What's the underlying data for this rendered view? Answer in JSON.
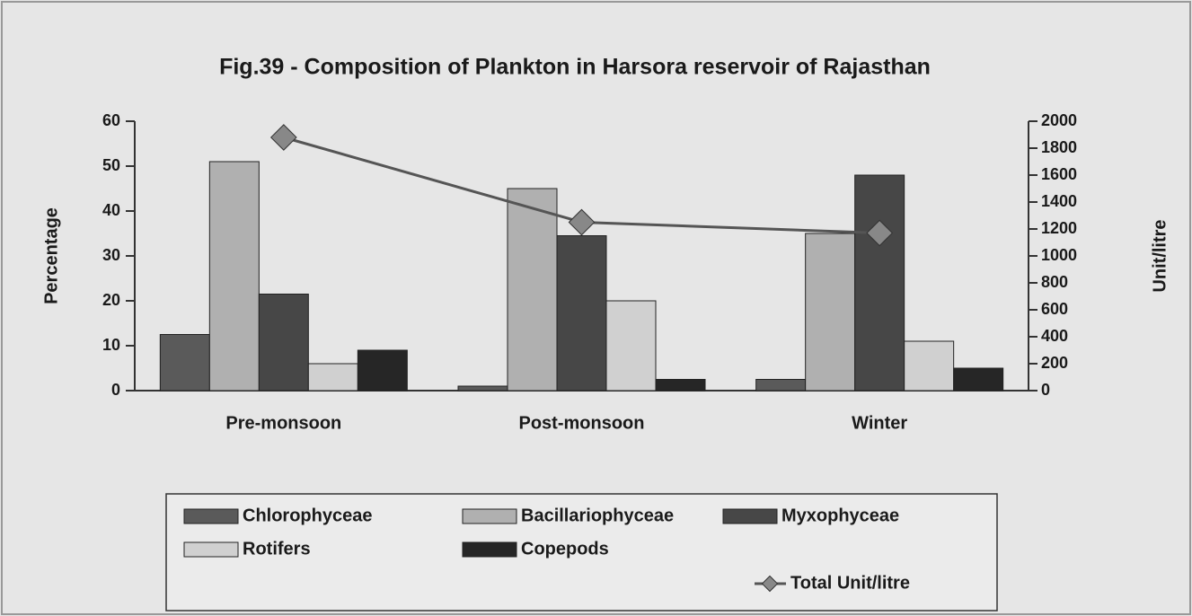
{
  "chart_data": {
    "type": "bar",
    "title": "Fig.39 - Composition of Plankton in Harsora reservoir of Rajasthan",
    "y_label": "Percentage",
    "y2_label": "Unit/litre",
    "categories": [
      "Pre-monsoon",
      "Post-monsoon",
      "Winter"
    ],
    "series": [
      {
        "name": "Chlorophyceae",
        "color": "#5a5a5a",
        "values": [
          12.5,
          1,
          2.5
        ]
      },
      {
        "name": "Bacillariophyceae",
        "color": "#b0b0b0",
        "values": [
          51,
          45,
          35
        ]
      },
      {
        "name": "Myxophyceae",
        "color": "#474747",
        "values": [
          21.5,
          34.5,
          48
        ]
      },
      {
        "name": "Rotifers",
        "color": "#d0d0d0",
        "values": [
          6,
          20,
          11
        ]
      },
      {
        "name": "Copepods",
        "color": "#262626",
        "values": [
          9,
          2.5,
          5
        ]
      },
      {
        "name": "Total Unit/litre",
        "color": "#555555",
        "type": "line",
        "axis": "y2",
        "values": [
          1880,
          1250,
          1170
        ]
      }
    ],
    "ylim": [
      0,
      60
    ],
    "yticks": [
      0,
      10,
      20,
      30,
      40,
      50,
      60
    ],
    "y2lim": [
      0,
      2000
    ],
    "y2ticks": [
      0,
      200,
      400,
      600,
      800,
      1000,
      1200,
      1400,
      1600,
      1800,
      2000
    ],
    "grid": false,
    "legend": "bottom"
  }
}
